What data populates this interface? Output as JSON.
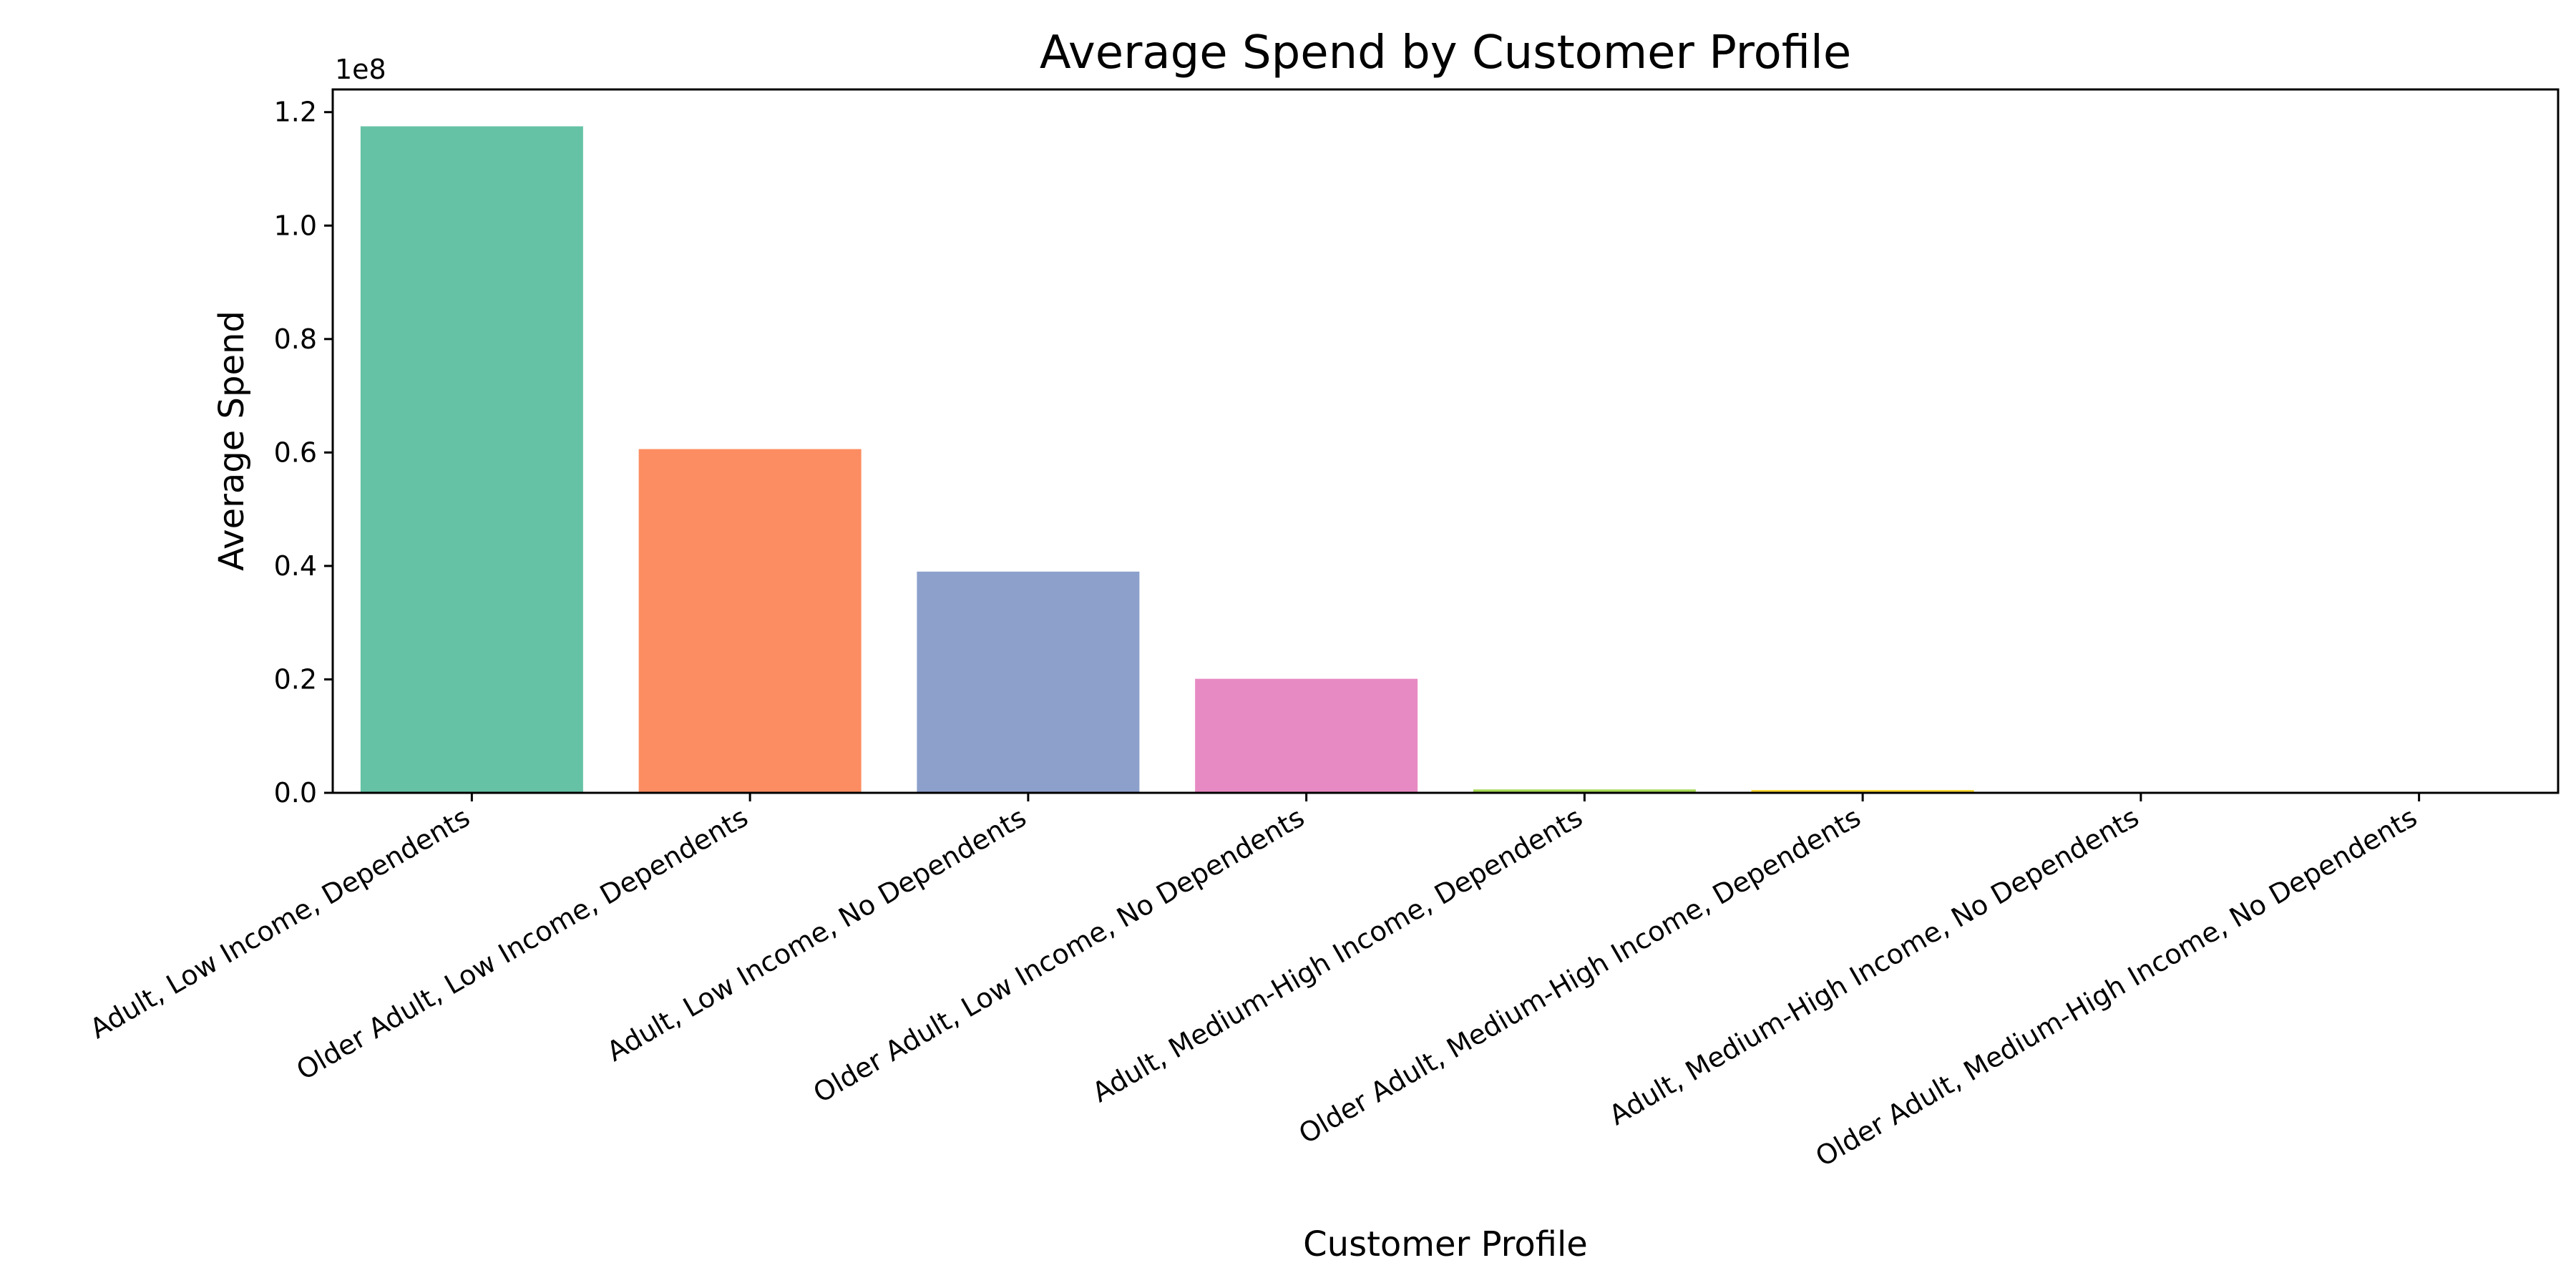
{
  "chart_data": {
    "type": "bar",
    "title": "Average Spend by Customer Profile",
    "xlabel": "Customer Profile",
    "ylabel": "Average Spend",
    "y_offset_text": "1e8",
    "ylim": [
      0,
      124000000
    ],
    "yticks": [
      0,
      20000000,
      40000000,
      60000000,
      80000000,
      100000000,
      120000000
    ],
    "ytick_labels": [
      "0.0",
      "0.2",
      "0.4",
      "0.6",
      "0.8",
      "1.0",
      "1.2"
    ],
    "categories": [
      "Adult, Low Income, Dependents",
      "Older Adult, Low Income, Dependents",
      "Adult, Low Income, No Dependents",
      "Older Adult, Low Income, No Dependents",
      "Adult, Medium-High Income, Dependents",
      "Older Adult, Medium-High Income, Dependents",
      "Adult, Medium-High Income, No Dependents",
      "Older Adult, Medium-High Income, No Dependents"
    ],
    "values": [
      117500000,
      60600000,
      39000000,
      20100000,
      600000,
      500000,
      100000,
      50000
    ],
    "colors": [
      "#66c2a5",
      "#fc8d62",
      "#8da0cb",
      "#e78ac3",
      "#a6d854",
      "#ffd92f",
      "#e5c494",
      "#b3b3b3"
    ],
    "grid": false,
    "legend": "none"
  }
}
